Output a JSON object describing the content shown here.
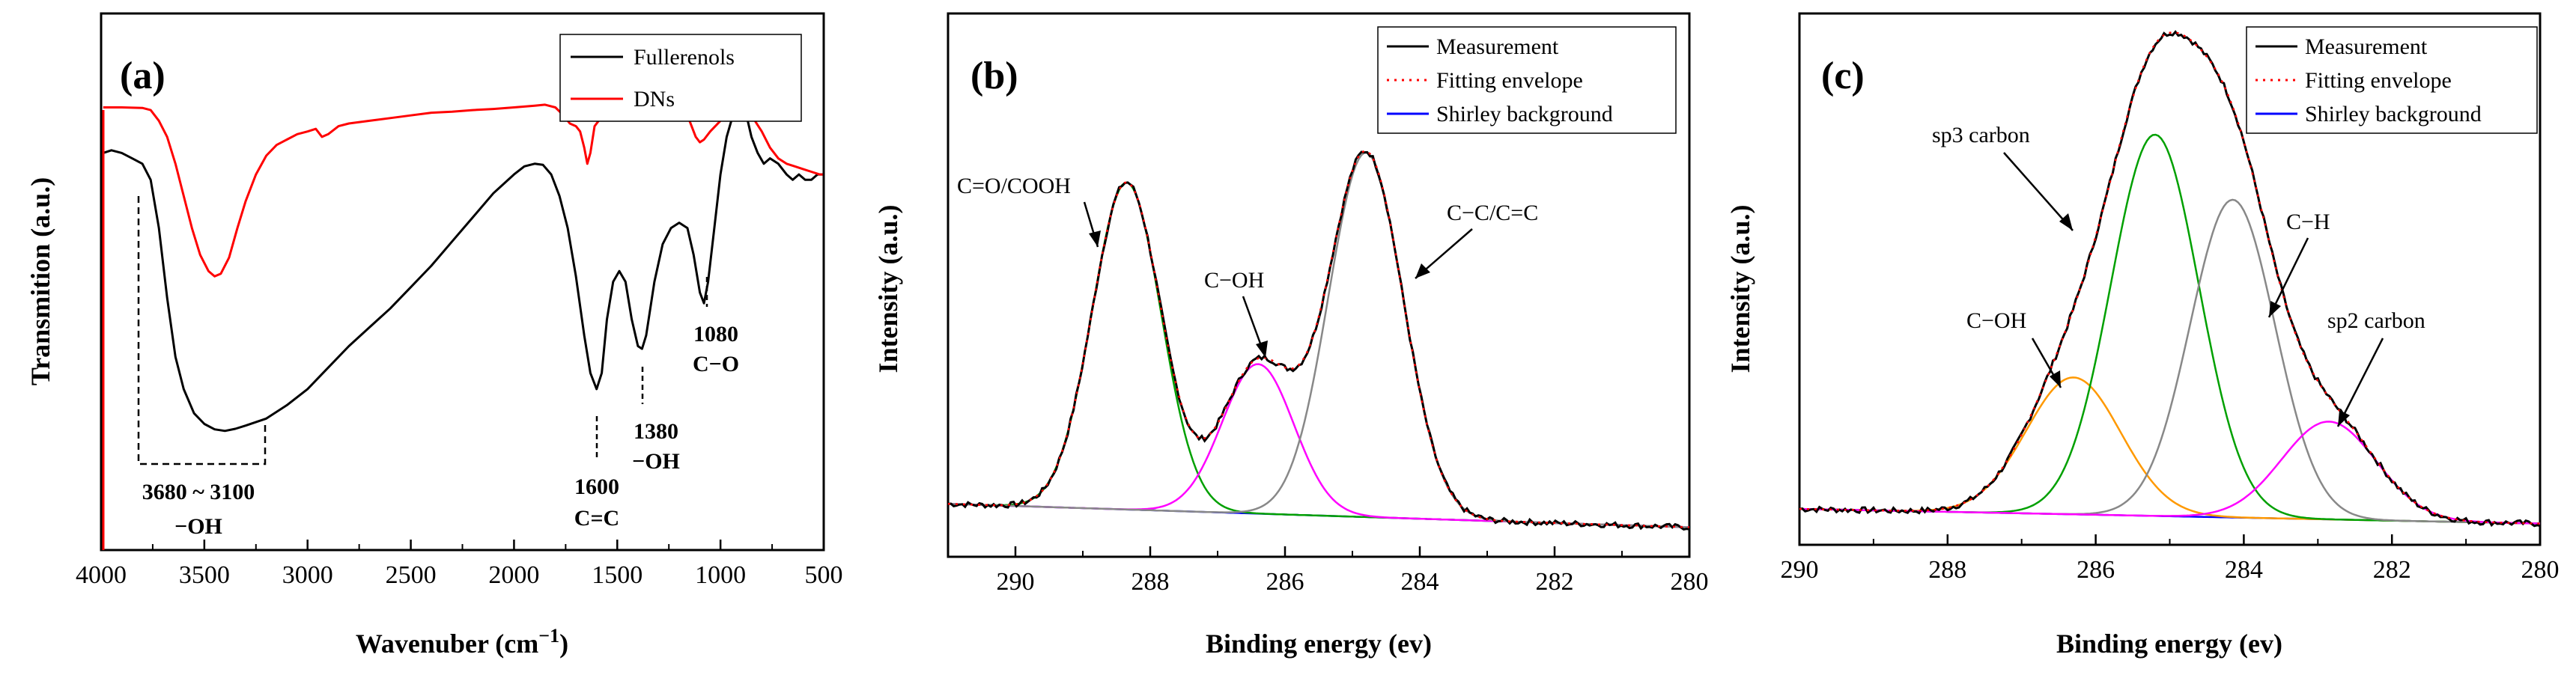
{
  "chart_data": [
    {
      "id": "a",
      "type": "line",
      "panel_label": "(a)",
      "xlabel": "Wavenuber (cm",
      "xlabel_sup": "−1",
      "xlabel_close": ")",
      "ylabel": "Transmition (a.u.)",
      "xlim": [
        4000,
        500
      ],
      "ylim": [
        0,
        1
      ],
      "x_ticks": [
        4000,
        3500,
        3000,
        2500,
        2000,
        1500,
        1000,
        500
      ],
      "legend_position": "top-right",
      "series": [
        {
          "name": "Fullerenols",
          "color": "#000000",
          "points": [
            [
              3990,
              0.74
            ],
            [
              3950,
              0.745
            ],
            [
              3900,
              0.74
            ],
            [
              3850,
              0.73
            ],
            [
              3800,
              0.72
            ],
            [
              3760,
              0.69
            ],
            [
              3720,
              0.6
            ],
            [
              3680,
              0.47
            ],
            [
              3640,
              0.36
            ],
            [
              3600,
              0.3
            ],
            [
              3550,
              0.255
            ],
            [
              3500,
              0.235
            ],
            [
              3450,
              0.225
            ],
            [
              3400,
              0.222
            ],
            [
              3350,
              0.226
            ],
            [
              3300,
              0.232
            ],
            [
              3200,
              0.245
            ],
            [
              3100,
              0.27
            ],
            [
              3000,
              0.3
            ],
            [
              2900,
              0.34
            ],
            [
              2800,
              0.38
            ],
            [
              2700,
              0.415
            ],
            [
              2600,
              0.45
            ],
            [
              2500,
              0.49
            ],
            [
              2400,
              0.53
            ],
            [
              2300,
              0.575
            ],
            [
              2200,
              0.62
            ],
            [
              2100,
              0.665
            ],
            [
              2000,
              0.7
            ],
            [
              1950,
              0.715
            ],
            [
              1900,
              0.72
            ],
            [
              1860,
              0.718
            ],
            [
              1820,
              0.7
            ],
            [
              1780,
              0.66
            ],
            [
              1740,
              0.6
            ],
            [
              1700,
              0.51
            ],
            [
              1660,
              0.4
            ],
            [
              1630,
              0.33
            ],
            [
              1600,
              0.3
            ],
            [
              1575,
              0.33
            ],
            [
              1550,
              0.43
            ],
            [
              1520,
              0.5
            ],
            [
              1490,
              0.52
            ],
            [
              1460,
              0.5
            ],
            [
              1430,
              0.43
            ],
            [
              1400,
              0.38
            ],
            [
              1380,
              0.375
            ],
            [
              1360,
              0.4
            ],
            [
              1320,
              0.5
            ],
            [
              1280,
              0.57
            ],
            [
              1240,
              0.6
            ],
            [
              1200,
              0.61
            ],
            [
              1160,
              0.6
            ],
            [
              1130,
              0.55
            ],
            [
              1100,
              0.48
            ],
            [
              1080,
              0.46
            ],
            [
              1060,
              0.5
            ],
            [
              1030,
              0.6
            ],
            [
              1000,
              0.7
            ],
            [
              970,
              0.77
            ],
            [
              940,
              0.81
            ],
            [
              920,
              0.825
            ],
            [
              900,
              0.83
            ],
            [
              880,
              0.82
            ],
            [
              850,
              0.77
            ],
            [
              820,
              0.74
            ],
            [
              790,
              0.72
            ],
            [
              760,
              0.73
            ],
            [
              720,
              0.72
            ],
            [
              680,
              0.7
            ],
            [
              650,
              0.69
            ],
            [
              620,
              0.7
            ],
            [
              590,
              0.69
            ],
            [
              560,
              0.69
            ],
            [
              530,
              0.7
            ],
            [
              505,
              0.7
            ]
          ]
        },
        {
          "name": "DNs",
          "color": "#ff0000",
          "points": [
            [
              3990,
              0.825
            ],
            [
              3900,
              0.825
            ],
            [
              3800,
              0.824
            ],
            [
              3760,
              0.82
            ],
            [
              3720,
              0.8
            ],
            [
              3680,
              0.77
            ],
            [
              3640,
              0.72
            ],
            [
              3600,
              0.66
            ],
            [
              3560,
              0.6
            ],
            [
              3520,
              0.55
            ],
            [
              3480,
              0.52
            ],
            [
              3450,
              0.51
            ],
            [
              3420,
              0.515
            ],
            [
              3380,
              0.545
            ],
            [
              3340,
              0.6
            ],
            [
              3300,
              0.65
            ],
            [
              3250,
              0.7
            ],
            [
              3200,
              0.735
            ],
            [
              3150,
              0.755
            ],
            [
              3100,
              0.765
            ],
            [
              3050,
              0.775
            ],
            [
              3000,
              0.78
            ],
            [
              2960,
              0.785
            ],
            [
              2930,
              0.77
            ],
            [
              2900,
              0.775
            ],
            [
              2850,
              0.79
            ],
            [
              2800,
              0.795
            ],
            [
              2700,
              0.8
            ],
            [
              2600,
              0.805
            ],
            [
              2500,
              0.81
            ],
            [
              2400,
              0.815
            ],
            [
              2300,
              0.817
            ],
            [
              2200,
              0.82
            ],
            [
              2100,
              0.822
            ],
            [
              2000,
              0.825
            ],
            [
              1900,
              0.828
            ],
            [
              1850,
              0.83
            ],
            [
              1800,
              0.825
            ],
            [
              1760,
              0.81
            ],
            [
              1730,
              0.795
            ],
            [
              1700,
              0.79
            ],
            [
              1680,
              0.78
            ],
            [
              1660,
              0.75
            ],
            [
              1645,
              0.72
            ],
            [
              1630,
              0.74
            ],
            [
              1610,
              0.79
            ],
            [
              1580,
              0.805
            ],
            [
              1540,
              0.82
            ],
            [
              1500,
              0.83
            ],
            [
              1460,
              0.83
            ],
            [
              1420,
              0.82
            ],
            [
              1380,
              0.82
            ],
            [
              1340,
              0.815
            ],
            [
              1300,
              0.81
            ],
            [
              1250,
              0.815
            ],
            [
              1200,
              0.82
            ],
            [
              1150,
              0.8
            ],
            [
              1120,
              0.77
            ],
            [
              1100,
              0.76
            ],
            [
              1080,
              0.765
            ],
            [
              1050,
              0.78
            ],
            [
              1000,
              0.8
            ],
            [
              950,
              0.815
            ],
            [
              900,
              0.82
            ],
            [
              850,
              0.81
            ],
            [
              800,
              0.78
            ],
            [
              760,
              0.75
            ],
            [
              720,
              0.73
            ],
            [
              680,
              0.72
            ],
            [
              640,
              0.715
            ],
            [
              600,
              0.71
            ],
            [
              560,
              0.705
            ],
            [
              520,
              0.7
            ],
            [
              505,
              0.7
            ]
          ]
        }
      ],
      "annotations": [
        {
          "lines": [
            "3680 ~ 3100",
            "−OH"
          ]
        },
        {
          "lines": [
            "1600",
            "C=C"
          ]
        },
        {
          "lines": [
            "1380",
            "−OH"
          ]
        },
        {
          "lines": [
            "1080",
            "C−O"
          ]
        }
      ]
    },
    {
      "id": "b",
      "type": "line",
      "panel_label": "(b)",
      "xlabel": "Binding energy (ev)",
      "ylabel": "Intensity (a.u.)",
      "xlim": [
        291,
        280
      ],
      "ylim": [
        0,
        1
      ],
      "x_ticks": [
        290,
        288,
        286,
        284,
        282,
        280
      ],
      "legend_position": "top-right",
      "legend": [
        {
          "name": "Measurement",
          "color": "#000000",
          "style": "solid"
        },
        {
          "name": "Fitting envelope",
          "color": "#ff0000",
          "style": "dotted"
        },
        {
          "name": "Shirley background",
          "color": "#0000ff",
          "style": "solid"
        }
      ],
      "background": {
        "high_be": 291,
        "low_be": 280,
        "y_at_high": 0.09,
        "y_at_low": 0.04
      },
      "components": [
        {
          "name": "C=O/COOH",
          "color": "#00a000",
          "center": 288.35,
          "height": 0.7,
          "fwhm": 1.2
        },
        {
          "name": "C−OH",
          "color": "#ff00ff",
          "center": 286.4,
          "height": 0.32,
          "fwhm": 1.25
        },
        {
          "name": "C−C/C=C",
          "color": "#888888",
          "center": 284.8,
          "height": 0.78,
          "fwhm": 1.3
        }
      ],
      "annotations": [
        {
          "text": "C=O/COOH"
        },
        {
          "text": "C−OH"
        },
        {
          "text": "C−C/C=C"
        }
      ]
    },
    {
      "id": "c",
      "type": "line",
      "panel_label": "(c)",
      "xlabel": "Binding energy (ev)",
      "ylabel": "Intensity (a.u.)",
      "xlim": [
        290,
        280
      ],
      "ylim": [
        0,
        1
      ],
      "x_ticks": [
        290,
        288,
        286,
        284,
        282,
        280
      ],
      "legend_position": "top-right",
      "legend": [
        {
          "name": "Measurement",
          "color": "#000000",
          "style": "solid"
        },
        {
          "name": "Fitting envelope",
          "color": "#ff0000",
          "style": "dotted"
        },
        {
          "name": "Shirley background",
          "color": "#0000ff",
          "style": "solid"
        }
      ],
      "background": {
        "high_be": 290,
        "low_be": 280,
        "y_at_high": 0.03,
        "y_at_low": 0.0
      },
      "components": [
        {
          "name": "C−OH",
          "color": "#ff9900",
          "center": 286.3,
          "height": 0.28,
          "fwhm": 1.5
        },
        {
          "name": "sp3 carbon",
          "color": "#00a000",
          "center": 285.2,
          "height": 0.78,
          "fwhm": 1.4
        },
        {
          "name": "C−H",
          "color": "#888888",
          "center": 284.15,
          "height": 0.65,
          "fwhm": 1.35
        },
        {
          "name": "sp2 carbon",
          "color": "#ff00ff",
          "center": 282.85,
          "height": 0.2,
          "fwhm": 1.5
        }
      ],
      "annotations": [
        {
          "text": "sp3 carbon"
        },
        {
          "text": "C−OH"
        },
        {
          "text": "C−H"
        },
        {
          "text": "sp2 carbon"
        }
      ]
    }
  ]
}
